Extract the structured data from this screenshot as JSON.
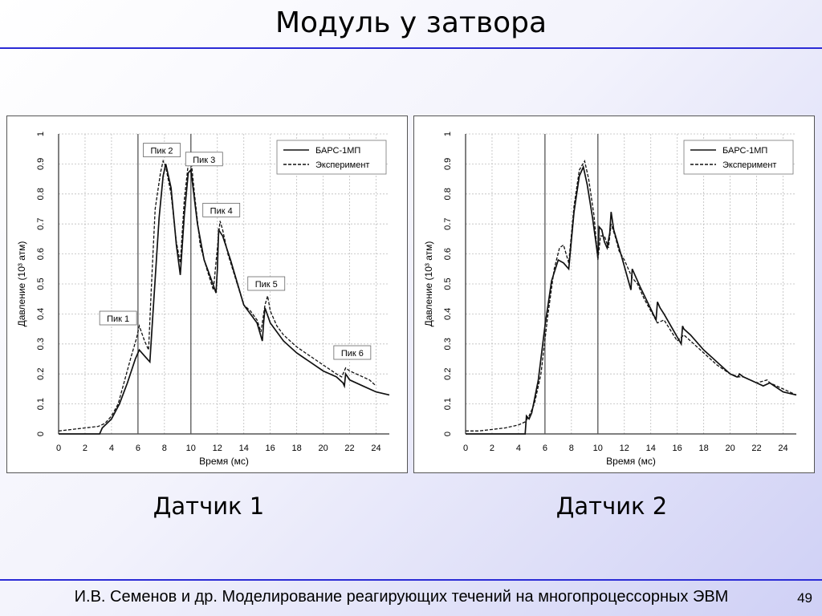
{
  "slide": {
    "title": "Модуль у затвора",
    "caption_left": "Датчик 1",
    "caption_right": "Датчик 2",
    "footer": "И.В. Семенов и др. Моделирование реагирующих течений на многопроцессорных ЭВМ",
    "page_number": "49"
  },
  "chart_data": [
    {
      "type": "line",
      "xlabel": "Время (мс)",
      "ylabel": "Давление (10³ атм)",
      "xlim": [
        0,
        25
      ],
      "ylim": [
        0,
        1
      ],
      "xticks": [
        "0",
        "2",
        "4",
        "6",
        "8",
        "10",
        "12",
        "14",
        "16",
        "18",
        "20",
        "22",
        "24"
      ],
      "yticks": [
        "0",
        "0.1",
        "0.2",
        "0.3",
        "0.4",
        "0.5",
        "0.6",
        "0.7",
        "0.8",
        "0.9",
        "1"
      ],
      "vlines": [
        6,
        10
      ],
      "legend_position": "top-right",
      "series": [
        {
          "name": "БАРС-1МП",
          "style": "solid",
          "x": [
            0,
            3.1,
            3.3,
            4,
            4.6,
            5.2,
            5.8,
            6.1,
            6.5,
            6.9,
            7.2,
            7.6,
            7.9,
            8.1,
            8.5,
            8.9,
            9.2,
            9.5,
            9.8,
            10.0,
            10.5,
            11.0,
            11.5,
            11.9,
            12.0,
            12.1,
            12.4,
            13,
            14,
            15,
            15.4,
            15.5,
            15.6,
            16,
            17,
            18,
            19,
            20,
            21,
            21.5,
            21.6,
            21.7,
            22,
            23,
            24,
            25
          ],
          "y": [
            0,
            0,
            0.02,
            0.05,
            0.1,
            0.17,
            0.25,
            0.28,
            0.26,
            0.24,
            0.45,
            0.72,
            0.86,
            0.9,
            0.82,
            0.63,
            0.53,
            0.73,
            0.87,
            0.88,
            0.7,
            0.58,
            0.52,
            0.47,
            0.55,
            0.68,
            0.66,
            0.58,
            0.43,
            0.37,
            0.31,
            0.37,
            0.42,
            0.37,
            0.31,
            0.27,
            0.24,
            0.21,
            0.19,
            0.17,
            0.16,
            0.2,
            0.18,
            0.16,
            0.14,
            0.13
          ]
        },
        {
          "name": "Эксперимент",
          "style": "dashed",
          "x": [
            0,
            1,
            2,
            3,
            3.5,
            4,
            4.5,
            5,
            5.5,
            5.9,
            6.1,
            6.5,
            6.8,
            7,
            7.3,
            7.7,
            7.9,
            8.1,
            8.5,
            8.9,
            9.2,
            9.5,
            9.8,
            10.0,
            10.3,
            10.7,
            11.2,
            11.7,
            12,
            12.2,
            12.4,
            12.8,
            13.5,
            14,
            14.5,
            15,
            15.3,
            15.6,
            15.8,
            16,
            16.5,
            17,
            18,
            19,
            20,
            21,
            21.4,
            21.7,
            22,
            22.5,
            23,
            23.5,
            24
          ],
          "y": [
            0.01,
            0.015,
            0.02,
            0.025,
            0.035,
            0.06,
            0.1,
            0.18,
            0.26,
            0.32,
            0.36,
            0.31,
            0.28,
            0.48,
            0.75,
            0.87,
            0.91,
            0.89,
            0.8,
            0.64,
            0.57,
            0.78,
            0.9,
            0.92,
            0.79,
            0.63,
            0.55,
            0.48,
            0.62,
            0.71,
            0.68,
            0.6,
            0.5,
            0.43,
            0.41,
            0.38,
            0.34,
            0.43,
            0.46,
            0.41,
            0.36,
            0.33,
            0.29,
            0.26,
            0.23,
            0.2,
            0.19,
            0.22,
            0.21,
            0.2,
            0.19,
            0.18,
            0.16
          ]
        }
      ],
      "annotations": [
        {
          "text": "Пик 1",
          "x": 4.5,
          "y": 0.385
        },
        {
          "text": "Пик 2",
          "x": 7.8,
          "y": 0.945
        },
        {
          "text": "Пик 3",
          "x": 11.0,
          "y": 0.915
        },
        {
          "text": "Пик 4",
          "x": 12.3,
          "y": 0.745
        },
        {
          "text": "Пик 5",
          "x": 15.7,
          "y": 0.5
        },
        {
          "text": "Пик 6",
          "x": 22.2,
          "y": 0.27
        }
      ]
    },
    {
      "type": "line",
      "xlabel": "Время (мс)",
      "ylabel": "Давление (10³ атм)",
      "xlim": [
        0,
        25
      ],
      "ylim": [
        0,
        1
      ],
      "xticks": [
        "0",
        "2",
        "4",
        "6",
        "8",
        "10",
        "12",
        "14",
        "16",
        "18",
        "20",
        "22",
        "24"
      ],
      "yticks": [
        "0",
        "0.1",
        "0.2",
        "0.3",
        "0.4",
        "0.5",
        "0.6",
        "0.7",
        "0.8",
        "0.9",
        "1"
      ],
      "vlines": [
        6,
        10
      ],
      "legend_position": "top-right",
      "series": [
        {
          "name": "БАРС-1МП",
          "style": "solid",
          "x": [
            0,
            4.5,
            4.6,
            4.8,
            5.0,
            5.5,
            6.0,
            6.5,
            7.0,
            7.4,
            7.8,
            8.2,
            8.6,
            8.9,
            9.2,
            9.6,
            10.0,
            10.1,
            10.3,
            10.5,
            10.7,
            10.9,
            11.0,
            11.2,
            11.4,
            11.8,
            12.5,
            12.6,
            12.8,
            13.2,
            14.4,
            14.5,
            14.7,
            15,
            16.3,
            16.4,
            16.5,
            17,
            18,
            19,
            20,
            20.5,
            20.6,
            20.7,
            21,
            22,
            22.5,
            23,
            24,
            25
          ],
          "y": [
            0,
            0,
            0.06,
            0.05,
            0.07,
            0.18,
            0.36,
            0.51,
            0.58,
            0.57,
            0.55,
            0.74,
            0.86,
            0.89,
            0.83,
            0.72,
            0.59,
            0.69,
            0.68,
            0.64,
            0.62,
            0.67,
            0.74,
            0.68,
            0.65,
            0.59,
            0.48,
            0.55,
            0.53,
            0.49,
            0.38,
            0.44,
            0.42,
            0.4,
            0.3,
            0.36,
            0.35,
            0.33,
            0.28,
            0.24,
            0.2,
            0.19,
            0.19,
            0.2,
            0.19,
            0.17,
            0.16,
            0.17,
            0.14,
            0.13
          ]
        },
        {
          "name": "Эксперимент",
          "style": "dashed",
          "x": [
            0,
            1,
            2,
            3,
            4,
            4.5,
            4.8,
            5.2,
            5.7,
            6.2,
            6.7,
            7.1,
            7.4,
            7.8,
            8.2,
            8.6,
            9.0,
            9.3,
            9.7,
            10.0,
            10.2,
            10.5,
            10.8,
            11.0,
            11.3,
            11.6,
            12,
            12.6,
            13,
            13.5,
            14.5,
            15,
            16,
            16.5,
            17,
            18,
            19,
            20,
            20.7,
            21,
            22,
            22.8,
            23,
            24,
            25
          ],
          "y": [
            0.01,
            0.01,
            0.015,
            0.02,
            0.03,
            0.04,
            0.06,
            0.1,
            0.2,
            0.39,
            0.55,
            0.62,
            0.63,
            0.57,
            0.76,
            0.88,
            0.91,
            0.85,
            0.73,
            0.58,
            0.66,
            0.66,
            0.62,
            0.7,
            0.66,
            0.61,
            0.58,
            0.52,
            0.5,
            0.45,
            0.37,
            0.38,
            0.31,
            0.33,
            0.31,
            0.27,
            0.23,
            0.2,
            0.19,
            0.19,
            0.17,
            0.18,
            0.17,
            0.15,
            0.13
          ]
        }
      ]
    }
  ]
}
